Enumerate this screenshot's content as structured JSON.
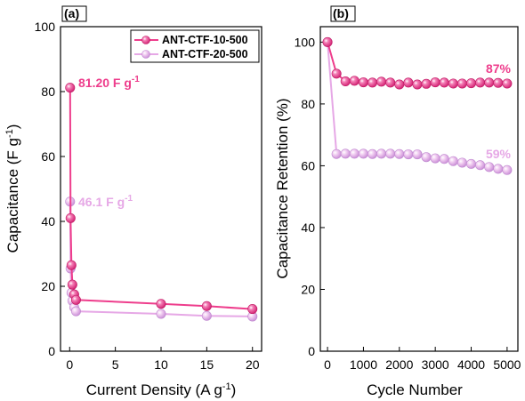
{
  "chart_data": [
    {
      "type": "line",
      "panel_label": "(a)",
      "xlabel": "Current Density (A g",
      "xlabel_sup": "-1",
      "xlabel_tail": ")",
      "ylabel": "Capacitance (F g",
      "ylabel_sup": "-1",
      "ylabel_tail": ")",
      "xlim": [
        -1,
        21
      ],
      "ylim": [
        0,
        100
      ],
      "xticks": [
        0,
        5,
        10,
        15,
        20
      ],
      "yticks": [
        0,
        20,
        40,
        60,
        80,
        100
      ],
      "tick_labels_x": [
        "0",
        "5",
        "10",
        "15",
        "20"
      ],
      "tick_labels_y": [
        "0",
        "20",
        "40",
        "60",
        "80",
        "100"
      ],
      "legend_position": "top-right",
      "series": [
        {
          "name": "ANT-CTF-10-500",
          "color": "#ee3d8c",
          "x": [
            0.05,
            0.1,
            0.2,
            0.3,
            0.5,
            0.7,
            10,
            15,
            20
          ],
          "y": [
            81.2,
            41.0,
            26.5,
            20.5,
            17.5,
            15.8,
            14.6,
            13.9,
            13.0
          ]
        },
        {
          "name": "ANT-CTF-20-500",
          "color": "#e6a8e6",
          "x": [
            0.05,
            0.1,
            0.2,
            0.3,
            0.5,
            0.7,
            10,
            15,
            20
          ],
          "y": [
            46.1,
            25.5,
            18.0,
            15.5,
            13.5,
            12.3,
            11.5,
            10.9,
            10.7
          ]
        }
      ],
      "annotations": [
        {
          "text": "81.20 F g",
          "sup": "-1",
          "color": "#ee3d8c"
        },
        {
          "text": "46.1 F g",
          "sup": "-1",
          "color": "#e6a8e6"
        }
      ]
    },
    {
      "type": "line",
      "panel_label": "(b)",
      "xlabel": "Cycle Number",
      "ylabel": "Capacitance Retention (%)",
      "xlim": [
        -200,
        5300
      ],
      "ylim": [
        0,
        105
      ],
      "xticks": [
        0,
        1000,
        2000,
        3000,
        4000,
        5000
      ],
      "yticks": [
        0,
        20,
        40,
        60,
        80,
        100
      ],
      "tick_labels_x": [
        "0",
        "1000",
        "2000",
        "3000",
        "4000",
        "5000"
      ],
      "tick_labels_y": [
        "0",
        "20",
        "40",
        "60",
        "80",
        "100"
      ],
      "series": [
        {
          "name": "ANT-CTF-10-500",
          "color": "#ee3d8c",
          "x": [
            0,
            250,
            500,
            750,
            1000,
            1250,
            1500,
            1750,
            2000,
            2250,
            2500,
            2750,
            3000,
            3250,
            3500,
            3750,
            4000,
            4250,
            4500,
            4750,
            5000
          ],
          "y": [
            100,
            89.8,
            87.3,
            87.5,
            87.0,
            86.9,
            87.2,
            86.9,
            86.3,
            86.9,
            86.3,
            86.5,
            87.0,
            86.9,
            86.6,
            86.6,
            86.7,
            86.9,
            86.9,
            86.8,
            86.6
          ]
        },
        {
          "name": "ANT-CTF-20-500",
          "color": "#e6a8e6",
          "x": [
            0,
            250,
            500,
            750,
            1000,
            1250,
            1500,
            1750,
            2000,
            2250,
            2500,
            2750,
            3000,
            3250,
            3500,
            3750,
            4000,
            4250,
            4500,
            4750,
            5000
          ],
          "y": [
            100,
            63.8,
            63.9,
            63.9,
            63.9,
            63.8,
            63.9,
            63.9,
            63.8,
            63.7,
            63.7,
            62.8,
            62.4,
            62.2,
            61.5,
            61.0,
            60.6,
            60.2,
            59.6,
            59.0,
            58.6
          ]
        }
      ],
      "annotations": [
        {
          "text": "87%",
          "color": "#ee3d8c"
        },
        {
          "text": "59%",
          "color": "#e6a8e6"
        }
      ]
    }
  ]
}
